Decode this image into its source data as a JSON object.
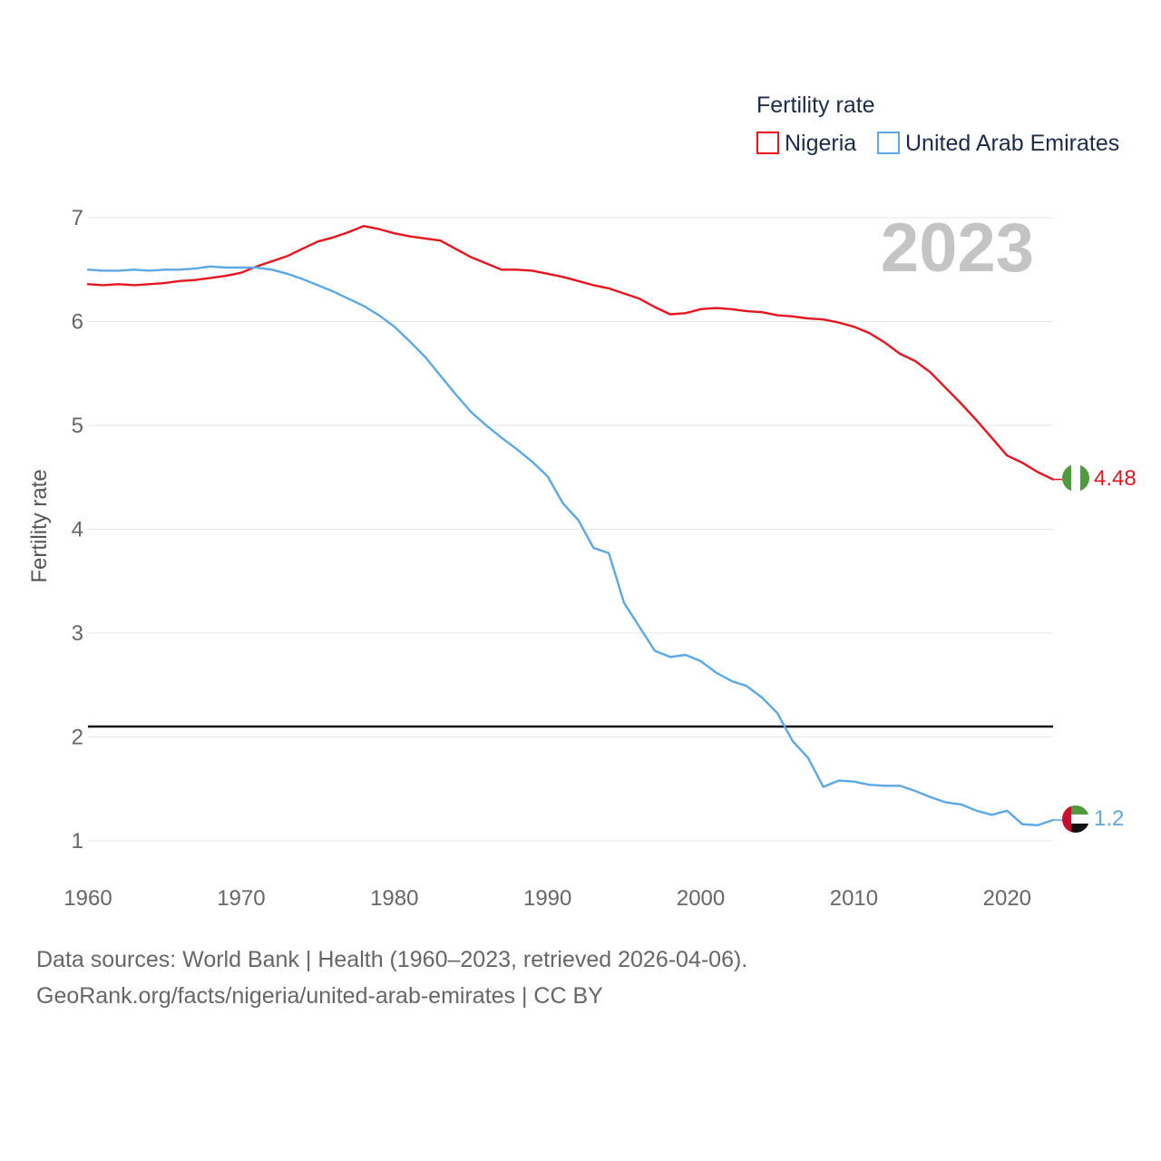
{
  "chart_data": {
    "type": "line",
    "title": "Fertility rate",
    "year": "2023",
    "xlabel": "",
    "ylabel": "Fertility rate",
    "xlim": [
      1960,
      2023
    ],
    "ylim": [
      0.7,
      7.0
    ],
    "x_ticks": [
      "1960",
      "1970",
      "1980",
      "1990",
      "2000",
      "2010",
      "2020"
    ],
    "y_ticks": [
      "1",
      "2",
      "3",
      "4",
      "5",
      "6",
      "7"
    ],
    "reference_line": 2.1,
    "x": [
      1960,
      1961,
      1962,
      1963,
      1964,
      1965,
      1966,
      1967,
      1968,
      1969,
      1970,
      1971,
      1972,
      1973,
      1974,
      1975,
      1976,
      1977,
      1978,
      1979,
      1980,
      1981,
      1982,
      1983,
      1984,
      1985,
      1986,
      1987,
      1988,
      1989,
      1990,
      1991,
      1992,
      1993,
      1994,
      1995,
      1996,
      1997,
      1998,
      1999,
      2000,
      2001,
      2002,
      2003,
      2004,
      2005,
      2006,
      2007,
      2008,
      2009,
      2010,
      2011,
      2012,
      2013,
      2014,
      2015,
      2016,
      2017,
      2018,
      2019,
      2020,
      2021,
      2022,
      2023
    ],
    "series": [
      {
        "name": "Nigeria",
        "color": "#e8141e",
        "end_label": "4.48",
        "flag": "nigeria-flag",
        "values": [
          6.36,
          6.35,
          6.36,
          6.35,
          6.36,
          6.37,
          6.39,
          6.4,
          6.42,
          6.44,
          6.47,
          6.53,
          6.58,
          6.63,
          6.7,
          6.77,
          6.81,
          6.86,
          6.92,
          6.89,
          6.85,
          6.82,
          6.8,
          6.78,
          6.7,
          6.62,
          6.56,
          6.5,
          6.5,
          6.49,
          6.46,
          6.43,
          6.39,
          6.35,
          6.32,
          6.27,
          6.22,
          6.14,
          6.07,
          6.08,
          6.12,
          6.13,
          6.12,
          6.1,
          6.09,
          6.06,
          6.05,
          6.03,
          6.02,
          5.99,
          5.95,
          5.89,
          5.8,
          5.69,
          5.62,
          5.51,
          5.36,
          5.21,
          5.05,
          4.88,
          4.71,
          4.64,
          4.55,
          4.48
        ]
      },
      {
        "name": "United Arab Emirates",
        "color": "#5aa8e6",
        "end_label": "1.2",
        "flag": "uae-flag",
        "values": [
          6.5,
          6.49,
          6.49,
          6.5,
          6.49,
          6.5,
          6.5,
          6.51,
          6.53,
          6.52,
          6.52,
          6.52,
          6.5,
          6.46,
          6.41,
          6.35,
          6.29,
          6.22,
          6.15,
          6.06,
          5.95,
          5.81,
          5.66,
          5.48,
          5.3,
          5.13,
          5.0,
          4.88,
          4.77,
          4.65,
          4.51,
          4.25,
          4.09,
          3.82,
          3.77,
          3.29,
          3.06,
          2.83,
          2.77,
          2.79,
          2.73,
          2.62,
          2.54,
          2.49,
          2.38,
          2.23,
          1.96,
          1.8,
          1.52,
          1.58,
          1.57,
          1.54,
          1.53,
          1.53,
          1.48,
          1.42,
          1.37,
          1.35,
          1.29,
          1.25,
          1.29,
          1.16,
          1.15,
          1.2
        ]
      }
    ]
  },
  "legend": {
    "title": "Fertility rate",
    "items": [
      "Nigeria",
      "United Arab Emirates"
    ]
  },
  "footer": {
    "line1": "Data sources: World Bank | Health (1960–2023, retrieved 2026-04-06).",
    "line2": "GeoRank.org/facts/nigeria/united-arab-emirates | CC BY"
  }
}
